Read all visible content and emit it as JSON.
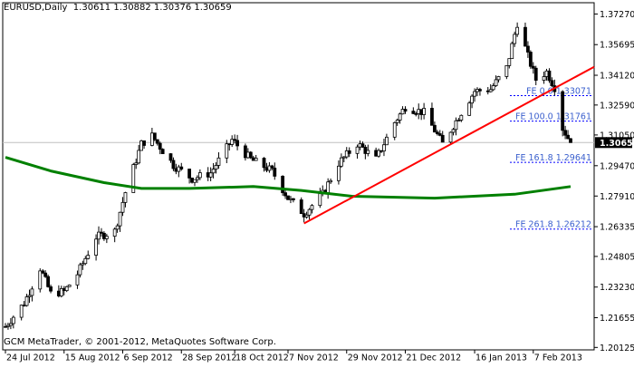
{
  "header": {
    "symbol_tf": "EURUSD,Daily",
    "ohlc": "1.30611 1.30882 1.30376 1.30659"
  },
  "footer": {
    "copyright": "GCM MetaTrader, © 2001-2012, MetaQuotes Software Corp."
  },
  "price_labels": [
    "1.37270",
    "1.35695",
    "1.34120",
    "1.32590",
    "1.31050",
    "1.29470",
    "1.27910",
    "1.26335",
    "1.24805",
    "1.23230",
    "1.21655",
    "1.20125"
  ],
  "current_price_label": "1.30659",
  "date_labels": [
    "24 Jul 2012",
    "15 Aug 2012",
    "6 Sep 2012",
    "28 Sep 2012",
    "18 Oct 2012",
    "7 Nov 2012",
    "29 Nov 2012",
    "21 Dec 2012",
    "16 Jan 2013",
    "7 Feb 2013"
  ],
  "fib_labels": [
    {
      "text": "FE 0.0 1.33071",
      "price": 1.33071
    },
    {
      "text": "FE 100.0 1.31761",
      "price": 1.31761
    },
    {
      "text": "FE 161.8 1.29641",
      "price": 1.29641
    },
    {
      "text": "FE 261.8 1.26212",
      "price": 1.26212
    }
  ],
  "colors": {
    "background": "#ffffff",
    "candle": "#000000",
    "moving_average": "#008000",
    "trendline": "#ff0000",
    "fib_line": "#0000ff",
    "fib_text": "#3a5fcd",
    "current_price_bg": "#000000",
    "current_price_text": "#ffffff"
  },
  "chart_data": {
    "type": "candlestick",
    "title": "EURUSD,Daily",
    "ylim": [
      1.2,
      1.3785
    ],
    "x_range": [
      "2012-07-24",
      "2013-02-21"
    ],
    "last_close": 1.30659,
    "close_path": [
      [
        "2012-07-24",
        1.212
      ],
      [
        "2012-07-31",
        1.224
      ],
      [
        "2012-08-06",
        1.242
      ],
      [
        "2012-08-10",
        1.229
      ],
      [
        "2012-08-15",
        1.23
      ],
      [
        "2012-08-20",
        1.239
      ],
      [
        "2012-08-27",
        1.258
      ],
      [
        "2012-09-03",
        1.261
      ],
      [
        "2012-09-07",
        1.281
      ],
      [
        "2012-09-13",
        1.306
      ],
      [
        "2012-09-17",
        1.31
      ],
      [
        "2012-09-25",
        1.295
      ],
      [
        "2012-10-02",
        1.288
      ],
      [
        "2012-10-09",
        1.291
      ],
      [
        "2012-10-17",
        1.308
      ],
      [
        "2012-10-24",
        1.298
      ],
      [
        "2012-11-01",
        1.292
      ],
      [
        "2012-11-07",
        1.278
      ],
      [
        "2012-11-13",
        1.27
      ],
      [
        "2012-11-20",
        1.28
      ],
      [
        "2012-11-26",
        1.296
      ],
      [
        "2012-12-03",
        1.306
      ],
      [
        "2012-12-10",
        1.298
      ],
      [
        "2012-12-17",
        1.317
      ],
      [
        "2012-12-21",
        1.325
      ],
      [
        "2012-12-28",
        1.322
      ],
      [
        "2013-01-04",
        1.306
      ],
      [
        "2013-01-10",
        1.32
      ],
      [
        "2013-01-16",
        1.333
      ],
      [
        "2013-01-22",
        1.334
      ],
      [
        "2013-01-28",
        1.345
      ],
      [
        "2013-02-01",
        1.368
      ],
      [
        "2013-02-05",
        1.351
      ],
      [
        "2013-02-08",
        1.339
      ],
      [
        "2013-02-12",
        1.343
      ],
      [
        "2013-02-15",
        1.335
      ],
      [
        "2013-02-18",
        1.314
      ],
      [
        "2013-02-21",
        1.30659
      ]
    ],
    "moving_average": [
      [
        "2012-07-24",
        1.299
      ],
      [
        "2012-08-10",
        1.292
      ],
      [
        "2012-08-30",
        1.286
      ],
      [
        "2012-09-13",
        1.283
      ],
      [
        "2012-10-01",
        1.283
      ],
      [
        "2012-10-25",
        1.284
      ],
      [
        "2012-11-12",
        1.282
      ],
      [
        "2012-12-01",
        1.279
      ],
      [
        "2013-01-01",
        1.278
      ],
      [
        "2013-01-31",
        1.28
      ],
      [
        "2013-02-21",
        1.284
      ]
    ],
    "trendline": [
      [
        "2012-11-13",
        1.265
      ],
      [
        "2013-02-21",
        1.339
      ]
    ],
    "horizontal_line": 1.30659
  }
}
